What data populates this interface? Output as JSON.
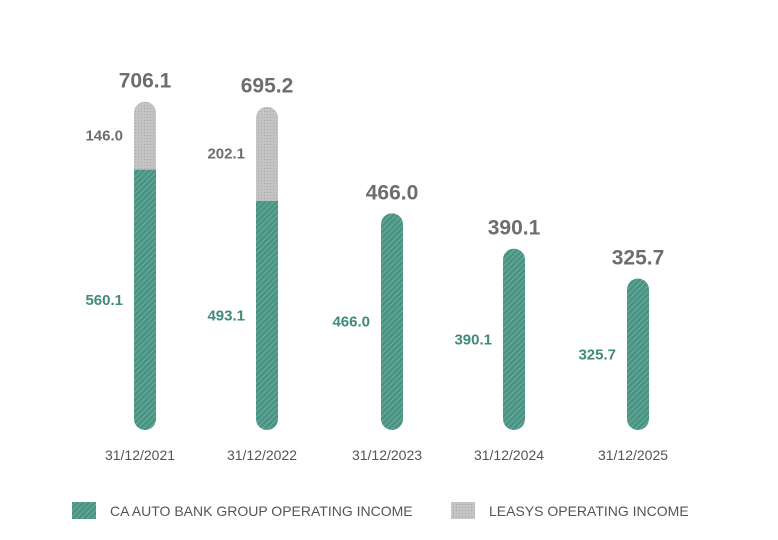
{
  "chart_data": {
    "type": "bar",
    "stacked": true,
    "categories": [
      "31/12/2021",
      "31/12/2022",
      "31/12/2023",
      "31/12/2024",
      "31/12/2025"
    ],
    "series": [
      {
        "name": "CA AUTO BANK GROUP OPERATING INCOME",
        "color": "#4a9484",
        "values": [
          560.1,
          493.1,
          466.0,
          390.1,
          325.7
        ],
        "labels": [
          "560.1",
          "493.1",
          "466.0",
          "390.1",
          "325.7"
        ]
      },
      {
        "name": "LEASYS OPERATING INCOME",
        "color": "#bdbdbd",
        "values": [
          146.0,
          202.1,
          null,
          null,
          null
        ],
        "labels": [
          "146.0",
          "202.1",
          "",
          "",
          ""
        ]
      }
    ],
    "totals": [
      "706.1",
      "695.2",
      "466.0",
      "390.1",
      "325.7"
    ],
    "legend_position": "bottom",
    "grid": false
  }
}
